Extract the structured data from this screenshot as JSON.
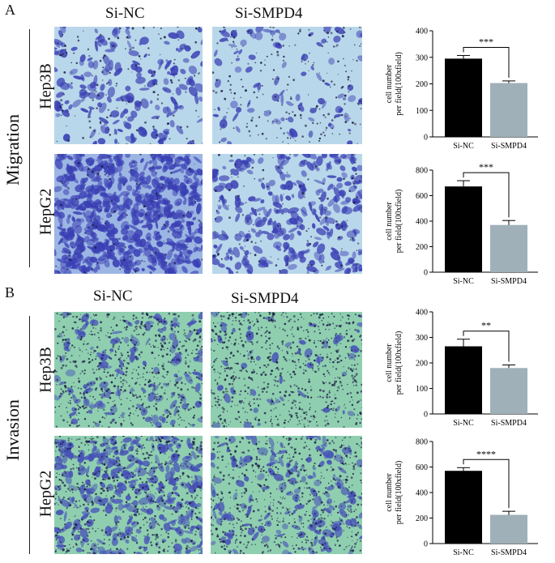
{
  "panels": [
    {
      "letter": "A",
      "side_label": "Migration",
      "col_titles": [
        "Si-NC",
        "Si-SMPD4"
      ],
      "rows": [
        "Hep3B",
        "HepG2"
      ]
    },
    {
      "letter": "B",
      "side_label": "Invasion",
      "col_titles": [
        "Si-NC",
        "Si-SMPD4"
      ],
      "rows": [
        "Hep3B",
        "HepG2"
      ]
    }
  ],
  "colors": {
    "migration_bg": "#b9d7ea",
    "migration_bg_dense": "#9cb6e4",
    "migration_cell": "#3a3fb3",
    "invasion_bg": "#8fcfb0",
    "invasion_cell": "#4650b8",
    "bar_nc": "#000000",
    "bar_smpd4": "#9fb0b8"
  },
  "chart_data": [
    {
      "type": "bar",
      "ylabel": "cell number\nper field(100xfield)",
      "ylim": [
        0,
        400
      ],
      "yticks": [
        0,
        100,
        200,
        300,
        400
      ],
      "categories": [
        "Si-NC",
        "Si-SMPD4"
      ],
      "values": [
        295,
        203
      ],
      "errors": [
        12,
        8
      ],
      "significance": "***"
    },
    {
      "type": "bar",
      "ylabel": "cell number\nper field(100xfield)",
      "ylim": [
        0,
        800
      ],
      "yticks": [
        0,
        200,
        400,
        600,
        800
      ],
      "categories": [
        "Si-NC",
        "Si-SMPD4"
      ],
      "values": [
        672,
        370
      ],
      "errors": [
        45,
        35
      ],
      "significance": "***"
    },
    {
      "type": "bar",
      "ylabel": "cell number\nper field(100xfield)",
      "ylim": [
        0,
        400
      ],
      "yticks": [
        0,
        100,
        200,
        300,
        400
      ],
      "categories": [
        "Si-NC",
        "Si-SMPD4"
      ],
      "values": [
        265,
        180
      ],
      "errors": [
        28,
        12
      ],
      "significance": "**"
    },
    {
      "type": "bar",
      "ylabel": "cell number\nper field(100xfield)",
      "ylim": [
        0,
        800
      ],
      "yticks": [
        0,
        200,
        400,
        600,
        800
      ],
      "categories": [
        "Si-NC",
        "Si-SMPD4"
      ],
      "values": [
        570,
        225
      ],
      "errors": [
        25,
        28
      ],
      "significance": "****"
    }
  ]
}
